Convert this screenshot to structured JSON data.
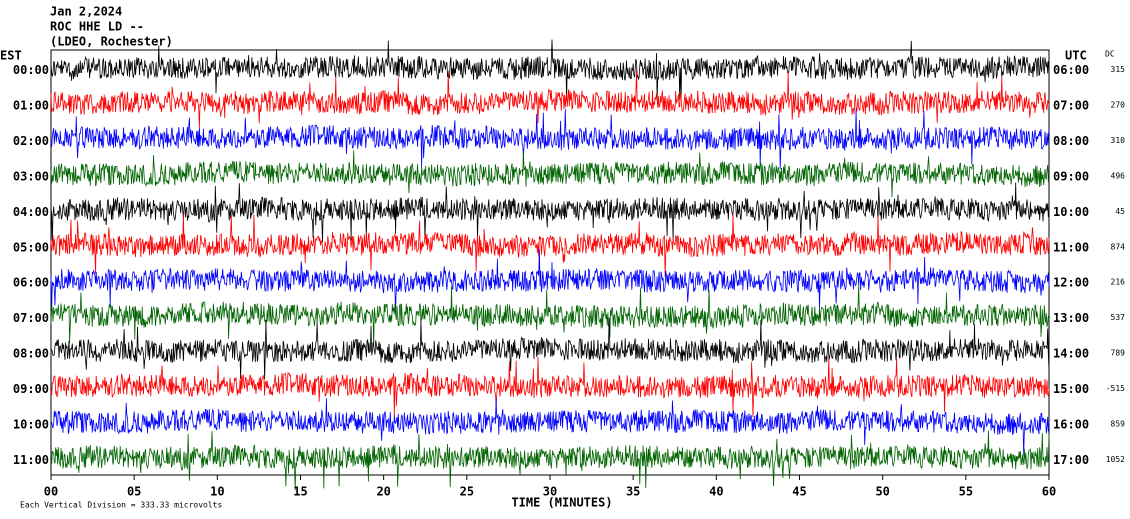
{
  "chart_data": {
    "type": "helicorder",
    "title_lines": [
      "Jan 2,2024",
      "ROC HHE LD --",
      "(LDEO, Rochester)"
    ],
    "left_axis_label": "EST",
    "right_axis_label": "UTC",
    "dc_label": "DC",
    "xlabel": "TIME (MINUTES)",
    "scale_note": "Each Vertical Division =  333.33 microvolts",
    "xlim": [
      0,
      60
    ],
    "xticks": [
      {
        "value": 0,
        "label": "00"
      },
      {
        "value": 5,
        "label": "05"
      },
      10,
      15,
      20,
      25,
      30,
      35,
      40,
      45,
      50,
      55,
      60
    ],
    "rows": [
      {
        "left": "00:00",
        "right": "06:00",
        "dc": 315,
        "color": "#000000"
      },
      {
        "left": "01:00",
        "right": "07:00",
        "dc": 270,
        "color": "#ff0000"
      },
      {
        "left": "02:00",
        "right": "08:00",
        "dc": 310,
        "color": "#0000ff"
      },
      {
        "left": "03:00",
        "right": "09:00",
        "dc": 496,
        "color": "#006400"
      },
      {
        "left": "04:00",
        "right": "10:00",
        "dc": 45,
        "color": "#000000"
      },
      {
        "left": "05:00",
        "right": "11:00",
        "dc": 874,
        "color": "#ff0000"
      },
      {
        "left": "06:00",
        "right": "12:00",
        "dc": 216,
        "color": "#0000ff"
      },
      {
        "left": "07:00",
        "right": "13:00",
        "dc": 537,
        "color": "#006400"
      },
      {
        "left": "08:00",
        "right": "14:00",
        "dc": 789,
        "color": "#000000"
      },
      {
        "left": "09:00",
        "right": "15:00",
        "dc": -515,
        "color": "#ff0000"
      },
      {
        "left": "10:00",
        "right": "16:00",
        "dc": 859,
        "color": "#0000ff"
      },
      {
        "left": "11:00",
        "right": "17:00",
        "dc": 1052,
        "color": "#006400"
      }
    ]
  }
}
